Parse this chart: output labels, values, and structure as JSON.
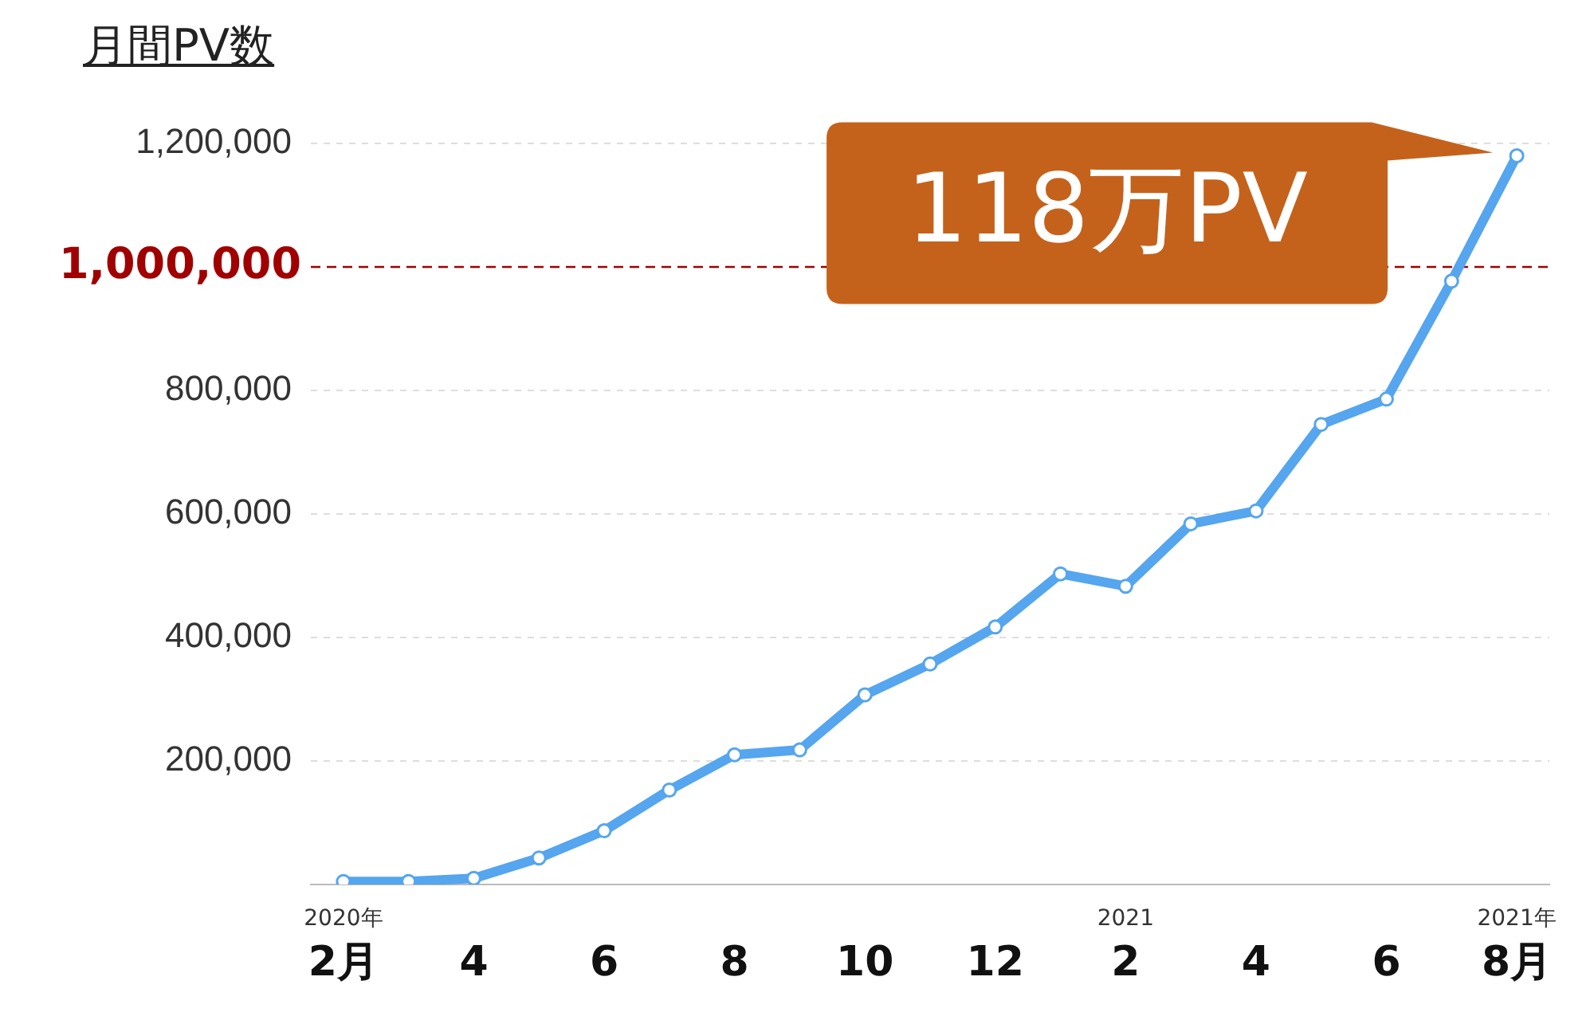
{
  "chart_data": {
    "type": "line",
    "title": "月間PV数",
    "categories": [
      "2020年\n2月",
      null,
      "4",
      null,
      "6",
      null,
      "8",
      null,
      "10",
      null,
      "12",
      null,
      "2021\n2",
      null,
      "4",
      null,
      "6",
      null,
      "2021年\n8月"
    ],
    "series": [
      {
        "color": "#55a5ef",
        "values": [
          5000,
          5000,
          10000,
          43000,
          87000,
          153000,
          210000,
          218000,
          307000,
          357000,
          417000,
          503000,
          483000,
          584000,
          605000,
          745000,
          786000,
          977000,
          1180000
        ]
      }
    ],
    "ylim": [
      0,
      1200000
    ],
    "yticks": [
      {
        "value": 200000,
        "label": "200,000"
      },
      {
        "value": 400000,
        "label": "400,000"
      },
      {
        "value": 600000,
        "label": "600,000"
      },
      {
        "value": 800000,
        "label": "800,000"
      },
      {
        "value": 1200000,
        "label": "1,200,000"
      }
    ],
    "grid": "y",
    "marker": "circle",
    "line_style": "solid",
    "legend": false,
    "ref_lines": [
      {
        "axis": "y",
        "value": 1000000,
        "label": "1,000,000",
        "color": "#a00000",
        "line_style": "dashed"
      }
    ],
    "annotations": [
      {
        "text": "118万PV",
        "x": "2021年\n8月",
        "y": 1180000
      }
    ]
  }
}
